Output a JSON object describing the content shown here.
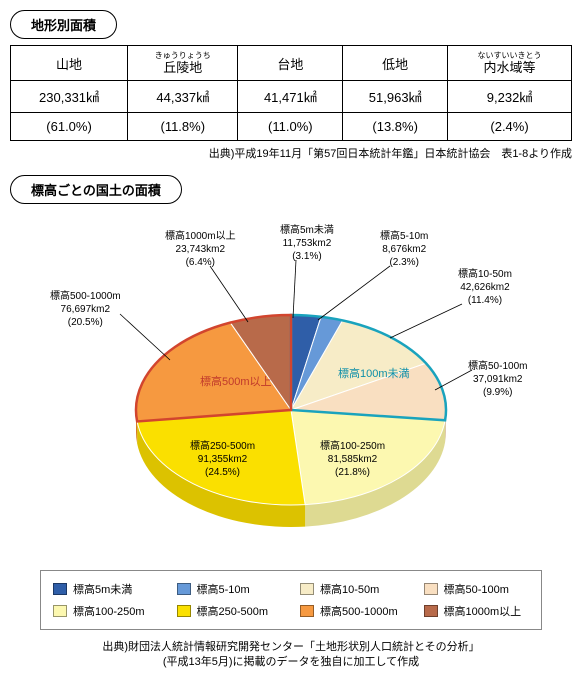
{
  "section1": {
    "title": "地形別面積",
    "columns": [
      {
        "label": "山地",
        "furigana": ""
      },
      {
        "label": "丘陵地",
        "furigana": "きゅうりょうち"
      },
      {
        "label": "台地",
        "furigana": ""
      },
      {
        "label": "低地",
        "furigana": ""
      },
      {
        "label": "内水域等",
        "furigana": "ないすいいきとう"
      }
    ],
    "row_area": [
      "230,331㎢",
      "44,337㎢",
      "41,471㎢",
      "51,963㎢",
      "9,232㎢"
    ],
    "row_pct": [
      "(61.0%)",
      "(11.8%)",
      "(11.0%)",
      "(13.8%)",
      "(2.4%)"
    ],
    "source": "出典)平成19年11月「第57回日本統計年鑑」日本統計協会　表1-8より作成"
  },
  "section2": {
    "title": "標高ごとの国土の面積",
    "type": "pie-3d",
    "slices": [
      {
        "label": "標高5m未満",
        "area": "11,753km2",
        "pct": "(3.1%)",
        "color": "#2f5ea8"
      },
      {
        "label": "標高5-10m",
        "area": "8,676km2",
        "pct": "(2.3%)",
        "color": "#6699d8"
      },
      {
        "label": "標高10-50m",
        "area": "42,626km2",
        "pct": "(11.4%)",
        "color": "#f7ecc7"
      },
      {
        "label": "標高50-100m",
        "area": "37,091km2",
        "pct": "(9.9%)",
        "color": "#f9dfc1"
      },
      {
        "label": "標高100-250m",
        "area": "81,585km2",
        "pct": "(21.8%)",
        "color": "#fcf8b0"
      },
      {
        "label": "標高250-500m",
        "area": "91,355km2",
        "pct": "(24.5%)",
        "color": "#fae000"
      },
      {
        "label": "標高500-1000m",
        "area": "76,697km2",
        "pct": "(20.5%)",
        "color": "#f69940"
      },
      {
        "label": "標高1000m以上",
        "area": "23,743km2",
        "pct": "(6.4%)",
        "color": "#b86a4a"
      }
    ],
    "annot_low": {
      "text": "標高100m未満",
      "color": "#0e8fa8"
    },
    "annot_high": {
      "text": "標高500m以上",
      "color": "#c0392b"
    },
    "outline_low_color": "#1aa3bd",
    "outline_high_color": "#d2452e",
    "source_line1": "出典)財団法人統計情報研究開発センター「土地形状別人口統計とその分析」",
    "source_line2": "(平成13年5月)に掲載のデータを独自に加工して作成"
  },
  "legend": {
    "items": [
      {
        "label": "標高5m未満",
        "color": "#2f5ea8"
      },
      {
        "label": "標高5-10m",
        "color": "#6699d8"
      },
      {
        "label": "標高10-50m",
        "color": "#f7ecc7"
      },
      {
        "label": "標高50-100m",
        "color": "#f9dfc1"
      },
      {
        "label": "標高100-250m",
        "color": "#fcf8b0"
      },
      {
        "label": "標高250-500m",
        "color": "#fae000"
      },
      {
        "label": "標高500-1000m",
        "color": "#f69940"
      },
      {
        "label": "標高1000m以上",
        "color": "#b86a4a"
      }
    ]
  }
}
